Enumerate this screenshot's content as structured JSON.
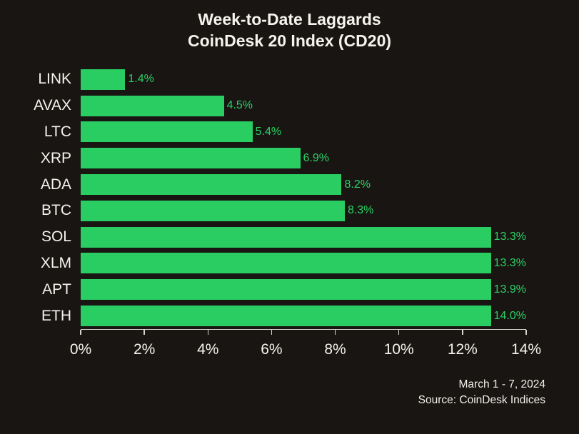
{
  "title": {
    "line1": "Week-to-Date Laggards",
    "line2": "CoinDesk 20 Index (CD20)"
  },
  "footer": {
    "date_range": "March 1 - 7, 2024",
    "source": "Source: CoinDesk Indices"
  },
  "colors": {
    "background": "#181512",
    "bar": "#29cd62",
    "value_label": "#2bd166",
    "axis": "#d9d6d0",
    "text": "#f6f3ee"
  },
  "chart_data": {
    "type": "bar",
    "orientation": "horizontal",
    "title": "Week-to-Date Laggards CoinDesk 20 Index (CD20)",
    "categories": [
      "LINK",
      "AVAX",
      "LTC",
      "XRP",
      "ADA",
      "BTC",
      "SOL",
      "XLM",
      "APT",
      "ETH"
    ],
    "values": [
      1.4,
      4.5,
      5.4,
      6.9,
      8.2,
      8.3,
      13.3,
      13.3,
      13.9,
      14.0
    ],
    "value_labels": [
      "1.4%",
      "4.5%",
      "5.4%",
      "6.9%",
      "8.2%",
      "8.3%",
      "13.3%",
      "13.3%",
      "13.9%",
      "14.0%"
    ],
    "xlabel": "",
    "ylabel": "",
    "xlim": [
      0,
      14
    ],
    "x_ticks": [
      "0%",
      "2%",
      "4%",
      "6%",
      "8%",
      "10%",
      "12%",
      "14%"
    ],
    "x_tick_values": [
      0,
      2,
      4,
      6,
      8,
      10,
      12,
      14
    ],
    "grid": false,
    "legend": false
  }
}
